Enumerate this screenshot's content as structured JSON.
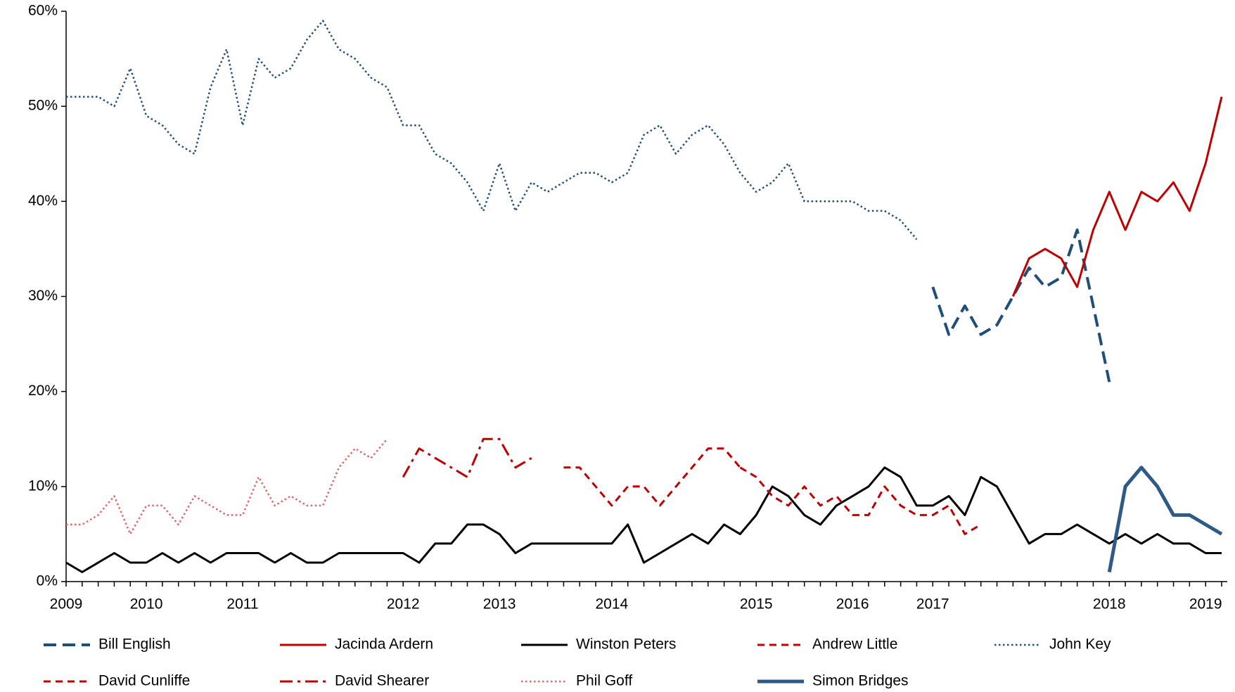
{
  "chart_data": {
    "type": "line",
    "categories": [
      "2009",
      null,
      null,
      null,
      null,
      "2010",
      null,
      null,
      null,
      null,
      null,
      "2011",
      null,
      null,
      null,
      null,
      null,
      null,
      null,
      null,
      null,
      "2012",
      null,
      null,
      null,
      null,
      null,
      "2013",
      null,
      null,
      null,
      null,
      null,
      null,
      "2014",
      null,
      null,
      null,
      null,
      null,
      null,
      null,
      null,
      "2015",
      null,
      null,
      null,
      null,
      null,
      "2016",
      null,
      null,
      null,
      null,
      "2017",
      null,
      null,
      null,
      null,
      null,
      null,
      null,
      null,
      null,
      null,
      "2018",
      null,
      null,
      null,
      null,
      null,
      "2019",
      null
    ],
    "ylim": [
      0,
      60
    ],
    "yticks": [
      {
        "value": 0,
        "label": "0%"
      },
      {
        "value": 10,
        "label": "10%"
      },
      {
        "value": 20,
        "label": "20%"
      },
      {
        "value": 30,
        "label": "30%"
      },
      {
        "value": 40,
        "label": "40%"
      },
      {
        "value": 50,
        "label": "50%"
      },
      {
        "value": 60,
        "label": "60%"
      }
    ],
    "legend": "bottom",
    "series": [
      {
        "name": "Bill English",
        "color": "#1f4e79",
        "line_style": "dashed",
        "line_width": 4,
        "values": [
          null,
          null,
          null,
          null,
          null,
          null,
          null,
          null,
          null,
          null,
          null,
          null,
          null,
          null,
          null,
          null,
          null,
          null,
          null,
          null,
          null,
          null,
          null,
          null,
          null,
          null,
          null,
          null,
          null,
          null,
          null,
          null,
          null,
          null,
          null,
          null,
          null,
          null,
          null,
          null,
          null,
          null,
          null,
          null,
          null,
          null,
          null,
          null,
          null,
          null,
          null,
          null,
          null,
          null,
          31,
          26,
          29,
          26,
          27,
          30,
          33,
          31,
          32,
          37,
          29,
          21,
          null,
          null,
          null,
          null,
          null,
          null,
          null
        ]
      },
      {
        "name": "Jacinda Ardern",
        "color": "#c00000",
        "line_style": "solid",
        "line_width": 3,
        "values": [
          null,
          null,
          null,
          null,
          null,
          null,
          null,
          null,
          null,
          null,
          null,
          null,
          null,
          null,
          null,
          null,
          null,
          null,
          null,
          null,
          null,
          null,
          null,
          null,
          null,
          null,
          null,
          null,
          null,
          null,
          null,
          null,
          null,
          null,
          null,
          null,
          null,
          null,
          null,
          null,
          null,
          null,
          null,
          null,
          null,
          null,
          null,
          null,
          null,
          null,
          null,
          null,
          null,
          null,
          null,
          null,
          null,
          null,
          null,
          30,
          34,
          35,
          34,
          31,
          37,
          41,
          37,
          41,
          40,
          42,
          39,
          44,
          51
        ]
      },
      {
        "name": "Winston Peters",
        "color": "#000000",
        "line_style": "solid",
        "line_width": 3,
        "values": [
          2,
          1,
          2,
          3,
          2,
          2,
          3,
          2,
          3,
          2,
          3,
          3,
          3,
          2,
          3,
          2,
          2,
          3,
          3,
          3,
          3,
          3,
          2,
          4,
          4,
          6,
          6,
          5,
          3,
          4,
          4,
          4,
          4,
          4,
          4,
          6,
          2,
          3,
          4,
          5,
          4,
          6,
          5,
          7,
          10,
          9,
          7,
          6,
          8,
          9,
          10,
          12,
          11,
          8,
          8,
          9,
          7,
          11,
          10,
          7,
          4,
          5,
          5,
          6,
          5,
          4,
          5,
          4,
          5,
          4,
          4,
          3,
          3
        ]
      },
      {
        "name": "Andrew Little",
        "color": "#c00000",
        "line_style": "dashed-short",
        "line_width": 3,
        "values": [
          null,
          null,
          null,
          null,
          null,
          null,
          null,
          null,
          null,
          null,
          null,
          null,
          null,
          null,
          null,
          null,
          null,
          null,
          null,
          null,
          null,
          null,
          null,
          null,
          null,
          null,
          null,
          null,
          null,
          null,
          null,
          null,
          null,
          null,
          null,
          null,
          null,
          null,
          null,
          null,
          null,
          null,
          12,
          11,
          9,
          8,
          10,
          8,
          9,
          7,
          7,
          10,
          8,
          7,
          7,
          8,
          5,
          6,
          null,
          null,
          null,
          null,
          null,
          null,
          null,
          null,
          null,
          null,
          null,
          null,
          null,
          null,
          null
        ]
      },
      {
        "name": "John Key",
        "color": "#1f4e79",
        "line_style": "dotted",
        "line_width": 2.5,
        "values": [
          51,
          51,
          51,
          50,
          54,
          49,
          48,
          46,
          45,
          52,
          56,
          48,
          55,
          53,
          54,
          57,
          59,
          56,
          55,
          53,
          52,
          48,
          48,
          45,
          44,
          42,
          39,
          44,
          39,
          42,
          41,
          42,
          43,
          43,
          42,
          43,
          47,
          48,
          45,
          47,
          48,
          46,
          43,
          41,
          42,
          44,
          40,
          40,
          40,
          40,
          39,
          39,
          38,
          36,
          null,
          null,
          null,
          null,
          null,
          null,
          null,
          null,
          null,
          null,
          null,
          null,
          null,
          null,
          null,
          null,
          null,
          null,
          null
        ]
      },
      {
        "name": "David Cunliffe",
        "color": "#c00000",
        "line_style": "dashed-short",
        "line_width": 3,
        "values": [
          null,
          null,
          null,
          null,
          null,
          null,
          null,
          null,
          null,
          null,
          null,
          null,
          null,
          null,
          null,
          null,
          null,
          null,
          null,
          null,
          null,
          null,
          null,
          null,
          null,
          null,
          null,
          null,
          null,
          null,
          null,
          12,
          12,
          10,
          8,
          10,
          10,
          8,
          10,
          12,
          14,
          14,
          12,
          null,
          null,
          null,
          null,
          null,
          null,
          null,
          null,
          null,
          null,
          null,
          null,
          null,
          null,
          null,
          null,
          null,
          null,
          null,
          null,
          null,
          null,
          null,
          null,
          null,
          null,
          null,
          null,
          null,
          null
        ]
      },
      {
        "name": "David Shearer",
        "color": "#c00000",
        "line_style": "dashdot",
        "line_width": 3,
        "values": [
          null,
          null,
          null,
          null,
          null,
          null,
          null,
          null,
          null,
          null,
          null,
          null,
          null,
          null,
          null,
          null,
          null,
          null,
          null,
          null,
          null,
          11,
          14,
          13,
          12,
          11,
          15,
          15,
          12,
          13,
          null,
          null,
          null,
          null,
          null,
          null,
          null,
          null,
          null,
          null,
          null,
          null,
          null,
          null,
          null,
          null,
          null,
          null,
          null,
          null,
          null,
          null,
          null,
          null,
          null,
          null,
          null,
          null,
          null,
          null,
          null,
          null,
          null,
          null,
          null,
          null,
          null,
          null,
          null,
          null,
          null,
          null,
          null
        ]
      },
      {
        "name": "Phil Goff",
        "color": "#e06666",
        "line_style": "dotted",
        "line_width": 2.5,
        "values": [
          6,
          6,
          7,
          9,
          5,
          8,
          8,
          6,
          9,
          8,
          7,
          7,
          11,
          8,
          9,
          8,
          8,
          12,
          14,
          13,
          15,
          null,
          null,
          null,
          null,
          null,
          null,
          null,
          null,
          null,
          null,
          null,
          null,
          null,
          null,
          null,
          null,
          null,
          null,
          null,
          null,
          null,
          null,
          null,
          null,
          null,
          null,
          null,
          null,
          null,
          null,
          null,
          null,
          null,
          null,
          null,
          null,
          null,
          null,
          null,
          null,
          null,
          null,
          null,
          null,
          null,
          null,
          null,
          null,
          null,
          null,
          null,
          null
        ]
      },
      {
        "name": "Simon Bridges",
        "color": "#2e5a88",
        "line_style": "solid",
        "line_width": 5,
        "values": [
          null,
          null,
          null,
          null,
          null,
          null,
          null,
          null,
          null,
          null,
          null,
          null,
          null,
          null,
          null,
          null,
          null,
          null,
          null,
          null,
          null,
          null,
          null,
          null,
          null,
          null,
          null,
          null,
          null,
          null,
          null,
          null,
          null,
          null,
          null,
          null,
          null,
          null,
          null,
          null,
          null,
          null,
          null,
          null,
          null,
          null,
          null,
          null,
          null,
          null,
          null,
          null,
          null,
          null,
          null,
          null,
          null,
          null,
          null,
          null,
          null,
          null,
          null,
          null,
          null,
          1,
          10,
          12,
          10,
          7,
          7,
          6,
          5
        ]
      }
    ]
  }
}
